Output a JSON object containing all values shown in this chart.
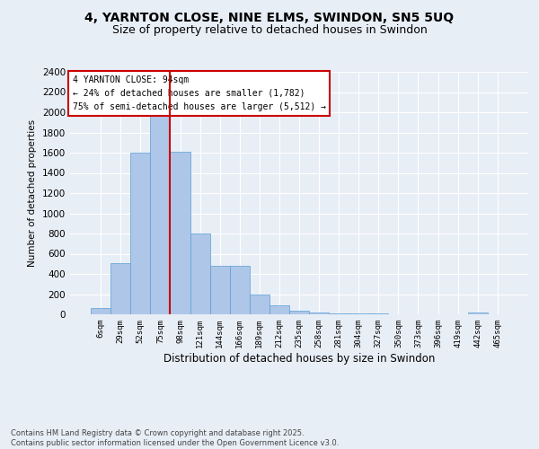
{
  "title_line1": "4, YARNTON CLOSE, NINE ELMS, SWINDON, SN5 5UQ",
  "title_line2": "Size of property relative to detached houses in Swindon",
  "xlabel": "Distribution of detached houses by size in Swindon",
  "ylabel": "Number of detached properties",
  "categories": [
    "6sqm",
    "29sqm",
    "52sqm",
    "75sqm",
    "98sqm",
    "121sqm",
    "144sqm",
    "166sqm",
    "189sqm",
    "212sqm",
    "235sqm",
    "258sqm",
    "281sqm",
    "304sqm",
    "327sqm",
    "350sqm",
    "373sqm",
    "396sqm",
    "419sqm",
    "442sqm",
    "465sqm"
  ],
  "values": [
    60,
    510,
    1600,
    1970,
    1610,
    800,
    480,
    480,
    200,
    90,
    35,
    15,
    10,
    5,
    5,
    2,
    2,
    1,
    1,
    20,
    1
  ],
  "bar_color": "#aec6e8",
  "bar_edge_color": "#5a9fd4",
  "background_color": "#e8eef6",
  "grid_color": "#ffffff",
  "red_line_x": 3.5,
  "annotation_title": "4 YARNTON CLOSE: 94sqm",
  "annotation_line1": "← 24% of detached houses are smaller (1,782)",
  "annotation_line2": "75% of semi-detached houses are larger (5,512) →",
  "annotation_box_color": "#ffffff",
  "annotation_box_edge": "#cc0000",
  "red_line_color": "#cc0000",
  "ylim": [
    0,
    2400
  ],
  "yticks": [
    0,
    200,
    400,
    600,
    800,
    1000,
    1200,
    1400,
    1600,
    1800,
    2000,
    2200,
    2400
  ],
  "footer": "Contains HM Land Registry data © Crown copyright and database right 2025.\nContains public sector information licensed under the Open Government Licence v3.0.",
  "title_fontsize": 10,
  "subtitle_fontsize": 9
}
